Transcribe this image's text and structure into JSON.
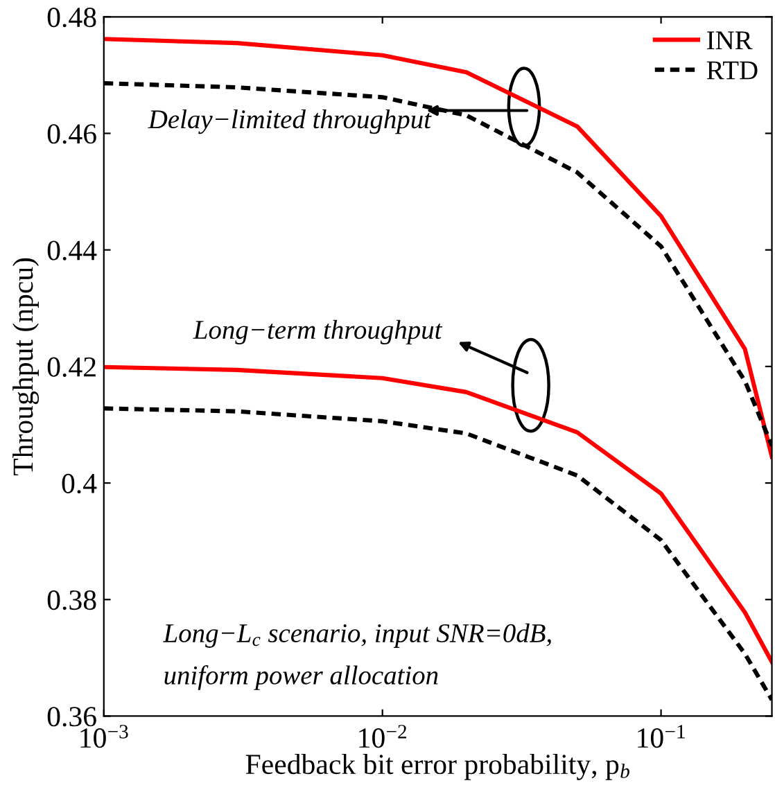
{
  "chart_data": {
    "type": "line",
    "xlabel": "Feedback bit error probability, p$_{b}$",
    "ylabel": "Throughput (npcu)",
    "x": [
      0.001,
      0.003,
      0.01,
      0.02,
      0.05,
      0.1,
      0.2,
      0.25
    ],
    "series": [
      {
        "name": "INR",
        "color": "#ff0000",
        "line_style": "solid",
        "values": [
          0.4762,
          0.4755,
          0.4734,
          0.4705,
          0.4612,
          0.4458,
          0.423,
          0.4045
        ]
      },
      {
        "name": "RTD",
        "color": "#000000",
        "line_style": "dashed",
        "values": [
          0.4686,
          0.4679,
          0.4662,
          0.4631,
          0.4533,
          0.4406,
          0.4175,
          0.4064
        ]
      },
      {
        "color": "#ff0000",
        "line_style": "solid",
        "values": [
          0.4199,
          0.4194,
          0.418,
          0.4156,
          0.4087,
          0.3982,
          0.3778,
          0.3693
        ]
      },
      {
        "color": "#000000",
        "line_style": "dashed",
        "values": [
          0.4128,
          0.4123,
          0.4106,
          0.4085,
          0.4013,
          0.3902,
          0.3707,
          0.3628
        ]
      }
    ],
    "log": "x",
    "xlim": [
      0.001,
      0.25
    ],
    "ylim": [
      0.36,
      0.48
    ],
    "xticks": [
      {
        "value": 0.001,
        "label": "10$^{−3}$"
      },
      {
        "value": 0.01,
        "label": "10$^{−2}$"
      },
      {
        "value": 0.1,
        "label": "10$^{−1}$"
      }
    ],
    "yticks": [
      {
        "value": 0.36,
        "label": "0.36"
      },
      {
        "value": 0.38,
        "label": "0.38"
      },
      {
        "value": 0.4,
        "label": "0.4"
      },
      {
        "value": 0.42,
        "label": "0.42"
      },
      {
        "value": 0.44,
        "label": "0.44"
      },
      {
        "value": 0.46,
        "label": "0.46"
      },
      {
        "value": 0.48,
        "label": "0.48"
      }
    ],
    "grid": false,
    "legend": "top right",
    "marker": "none",
    "annotations": [
      "Delay−limited throughput",
      "Long−term throughput",
      "Long−L$_{c}$ scenario, input SNR=0dB,\nuniform power allocation"
    ]
  }
}
